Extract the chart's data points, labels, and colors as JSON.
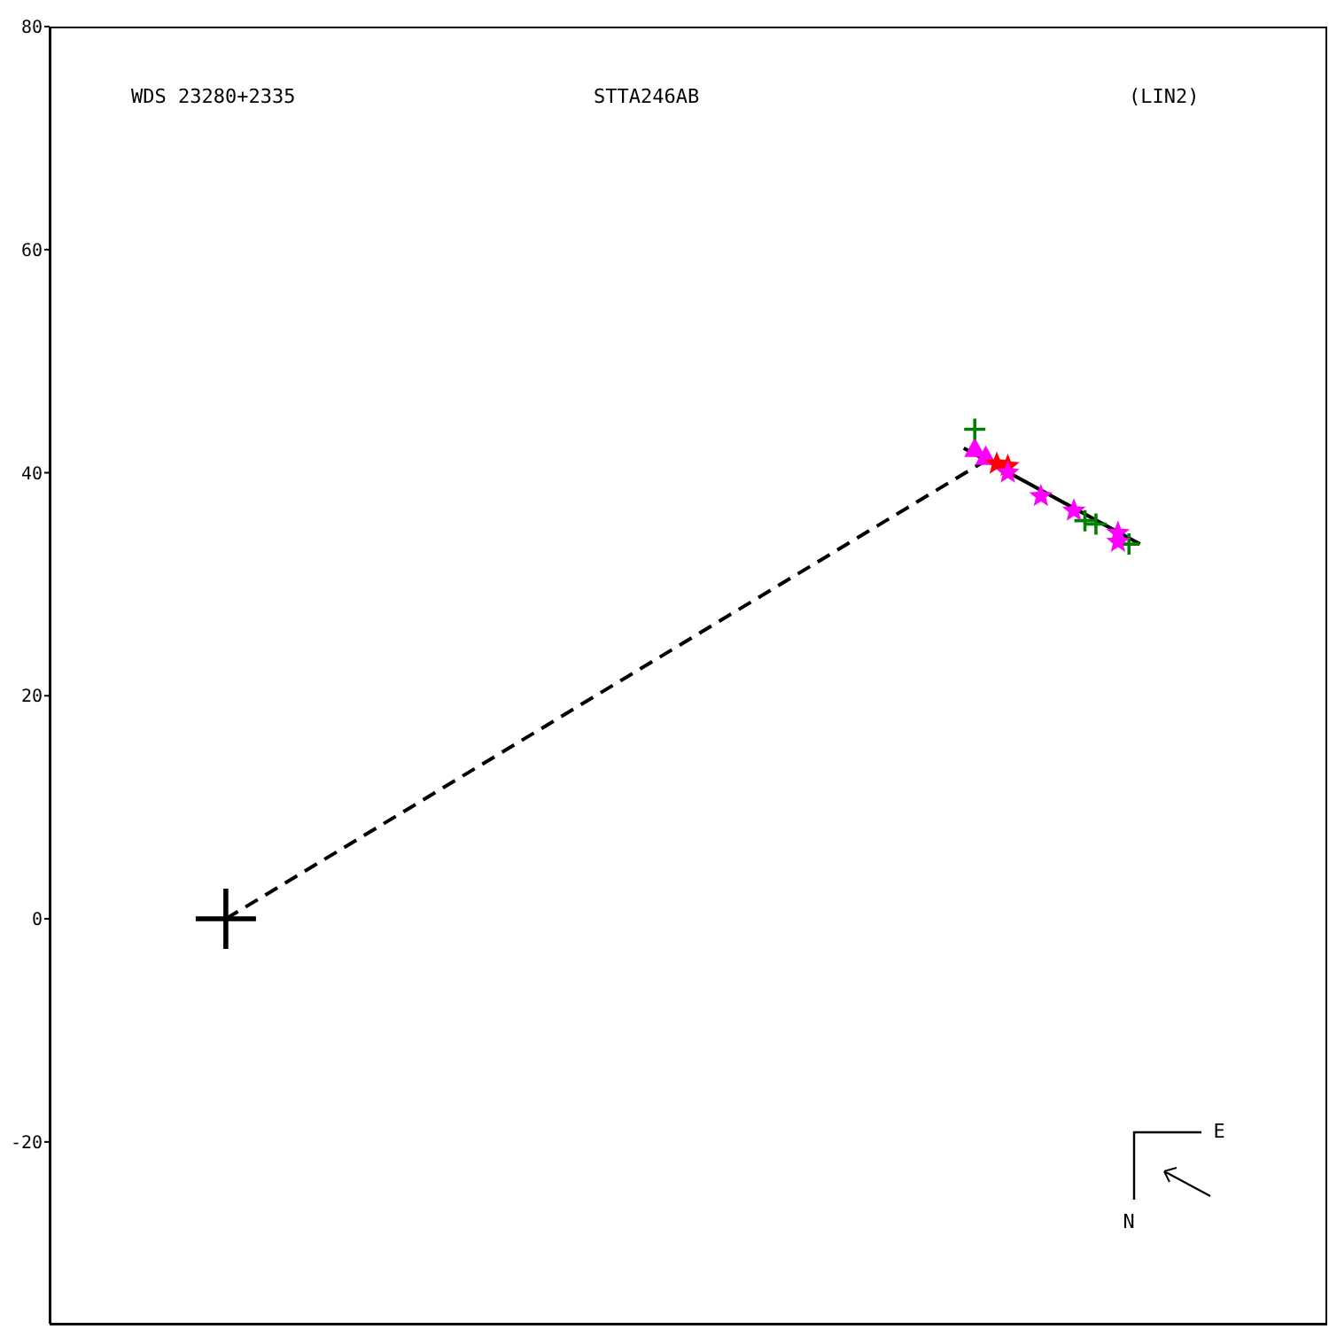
{
  "chart_data": {
    "type": "scatter",
    "title": "WDS 23280+2335",
    "subtitle": "STTA246AB",
    "annotations": [
      "(LIN2)",
      "N",
      "E"
    ],
    "categories": [
      null,
      null,
      null,
      null,
      null,
      null,
      null,
      null,
      null,
      null,
      null,
      null,
      null,
      null,
      null,
      null,
      null,
      null,
      null,
      null,
      null,
      null,
      null,
      null,
      null,
      null,
      null,
      null,
      null,
      null,
      null,
      null,
      null,
      null,
      null,
      null,
      null,
      null,
      null,
      null,
      null,
      null,
      null,
      null,
      null,
      null,
      null,
      null,
      null,
      null,
      null,
      null,
      null,
      null,
      null,
      null,
      null,
      null,
      null,
      null,
      null,
      null,
      null,
      null,
      null,
      null,
      null,
      null,
      null,
      null,
      null,
      null,
      null,
      null,
      null,
      null,
      null,
      null,
      null,
      null,
      null,
      null,
      null,
      null,
      null,
      null,
      null,
      null,
      null,
      null,
      null,
      null,
      null,
      null,
      null,
      null,
      null,
      null,
      null,
      null,
      null,
      null,
      null,
      null,
      null,
      null,
      null,
      null,
      null,
      null,
      null,
      null,
      null,
      null,
      null,
      null,
      null
    ],
    "tick_labels": "y",
    "ylim": [
      -36.3,
      80
    ],
    "yticks": [
      -20,
      0,
      20,
      40,
      60,
      80
    ],
    "grid": false,
    "legend": false,
    "series": [
      {
        "type": "line",
        "line_style": "dashed",
        "marker": "none",
        "color": "#000000",
        "values": [
          null,
          null,
          null,
          null,
          null,
          null,
          null,
          null,
          null,
          null,
          null,
          null,
          null,
          null,
          null,
          null,
          0,
          null,
          null,
          null,
          null,
          null,
          null,
          null,
          null,
          null,
          null,
          null,
          null,
          null,
          null,
          null,
          null,
          null,
          null,
          null,
          null,
          null,
          null,
          null,
          null,
          null,
          null,
          null,
          null,
          null,
          null,
          null,
          null,
          null,
          null,
          null,
          null,
          null,
          null,
          null,
          null,
          null,
          null,
          null,
          null,
          null,
          null,
          null,
          null,
          null,
          null,
          null,
          null,
          null,
          null,
          null,
          null,
          null,
          null,
          null,
          null,
          null,
          null,
          null,
          null,
          null,
          null,
          null,
          null,
          41.1,
          null,
          null,
          null,
          null,
          null,
          null,
          null,
          null,
          null,
          null,
          null,
          null,
          null,
          null,
          null,
          null,
          null,
          null,
          null,
          null,
          null,
          null,
          null,
          null,
          null,
          null,
          null,
          null,
          null,
          null,
          null
        ]
      },
      {
        "type": "line",
        "line_style": "solid",
        "marker": "none",
        "color": "#000000",
        "values": [
          null,
          null,
          null,
          null,
          null,
          null,
          null,
          null,
          null,
          null,
          null,
          null,
          null,
          null,
          null,
          null,
          null,
          null,
          null,
          null,
          null,
          null,
          null,
          null,
          null,
          null,
          null,
          null,
          null,
          null,
          null,
          null,
          null,
          null,
          null,
          null,
          null,
          null,
          null,
          null,
          null,
          null,
          null,
          null,
          null,
          null,
          null,
          null,
          null,
          null,
          null,
          null,
          null,
          null,
          null,
          null,
          null,
          null,
          null,
          null,
          null,
          null,
          null,
          null,
          null,
          null,
          null,
          null,
          null,
          null,
          null,
          null,
          null,
          null,
          null,
          null,
          null,
          null,
          null,
          null,
          null,
          null,
          null,
          42.2,
          null,
          null,
          null,
          null,
          null,
          null,
          null,
          null,
          null,
          null,
          null,
          null,
          null,
          null,
          null,
          33.6,
          null,
          null,
          null,
          null,
          null,
          null,
          null,
          null,
          null,
          null,
          null,
          null,
          null,
          null,
          null,
          null,
          null
        ]
      },
      {
        "marker": "cross",
        "color": "#000000",
        "values": [
          null,
          null,
          null,
          null,
          null,
          null,
          null,
          null,
          null,
          null,
          null,
          null,
          null,
          null,
          null,
          null,
          0,
          null,
          null,
          null,
          null,
          null,
          null,
          null,
          null,
          null,
          null,
          null,
          null,
          null,
          null,
          null,
          null,
          null,
          null,
          null,
          null,
          null,
          null,
          null,
          null,
          null,
          null,
          null,
          null,
          null,
          null,
          null,
          null,
          null,
          null,
          null,
          null,
          null,
          null,
          null,
          null,
          null,
          null,
          null,
          null,
          null,
          null,
          null,
          null,
          null,
          null,
          null,
          null,
          null,
          null,
          null,
          null,
          null,
          null,
          null,
          null,
          null,
          null,
          null,
          null,
          null,
          null,
          null,
          null,
          null,
          null,
          null,
          null,
          null,
          null,
          null,
          null,
          null,
          null,
          null,
          null,
          null,
          null,
          null,
          null,
          null,
          null,
          null,
          null,
          null,
          null,
          null,
          null,
          null,
          null,
          null,
          null,
          null,
          null,
          null,
          null
        ]
      },
      {
        "marker": "triangle",
        "color": "#ff00ff",
        "values": [
          null,
          null,
          null,
          null,
          null,
          null,
          null,
          null,
          null,
          null,
          null,
          null,
          null,
          null,
          null,
          null,
          null,
          null,
          null,
          null,
          null,
          null,
          null,
          null,
          null,
          null,
          null,
          null,
          null,
          null,
          null,
          null,
          null,
          null,
          null,
          null,
          null,
          null,
          null,
          null,
          null,
          null,
          null,
          null,
          null,
          null,
          null,
          null,
          null,
          null,
          null,
          null,
          null,
          null,
          null,
          null,
          null,
          null,
          null,
          null,
          null,
          null,
          null,
          null,
          null,
          null,
          null,
          null,
          null,
          null,
          null,
          null,
          null,
          null,
          null,
          null,
          null,
          null,
          null,
          null,
          null,
          null,
          null,
          null,
          42.2,
          41.5,
          null,
          null,
          null,
          null,
          null,
          null,
          null,
          null,
          null,
          null,
          null,
          null,
          null,
          null,
          null,
          null,
          null,
          null,
          null,
          null,
          null,
          null,
          null,
          null,
          null,
          null,
          null,
          null,
          null,
          null,
          null
        ]
      },
      {
        "marker": "cross",
        "color": "#008000",
        "values": [
          null,
          null,
          null,
          null,
          null,
          null,
          null,
          null,
          null,
          null,
          null,
          null,
          null,
          null,
          null,
          null,
          null,
          null,
          null,
          null,
          null,
          null,
          null,
          null,
          null,
          null,
          null,
          null,
          null,
          null,
          null,
          null,
          null,
          null,
          null,
          null,
          null,
          null,
          null,
          null,
          null,
          null,
          null,
          null,
          null,
          null,
          null,
          null,
          null,
          null,
          null,
          null,
          null,
          null,
          null,
          null,
          null,
          null,
          null,
          null,
          null,
          null,
          null,
          null,
          null,
          null,
          null,
          null,
          null,
          null,
          null,
          null,
          null,
          null,
          null,
          null,
          null,
          null,
          null,
          null,
          null,
          null,
          null,
          null,
          43.9,
          null,
          null,
          null,
          null,
          null,
          null,
          null,
          null,
          null,
          35.7,
          35.4,
          null,
          null,
          33.6,
          null,
          null,
          null,
          null,
          null,
          null,
          null,
          null,
          null,
          null,
          null,
          null,
          null,
          null,
          null,
          null,
          null,
          null
        ]
      },
      {
        "marker": "star",
        "color": "#ff0000",
        "values": [
          null,
          null,
          null,
          null,
          null,
          null,
          null,
          null,
          null,
          null,
          null,
          null,
          null,
          null,
          null,
          null,
          null,
          null,
          null,
          null,
          null,
          null,
          null,
          null,
          null,
          null,
          null,
          null,
          null,
          null,
          null,
          null,
          null,
          null,
          null,
          null,
          null,
          null,
          null,
          null,
          null,
          null,
          null,
          null,
          null,
          null,
          null,
          null,
          null,
          null,
          null,
          null,
          null,
          null,
          null,
          null,
          null,
          null,
          null,
          null,
          null,
          null,
          null,
          null,
          null,
          null,
          null,
          null,
          null,
          null,
          null,
          null,
          null,
          null,
          null,
          null,
          null,
          null,
          null,
          null,
          null,
          null,
          null,
          null,
          null,
          null,
          40.8,
          40.6,
          null,
          null,
          null,
          null,
          null,
          null,
          null,
          null,
          null,
          null,
          null,
          null,
          null,
          null,
          null,
          null,
          null,
          null,
          null,
          null,
          null,
          null,
          null,
          null,
          null,
          null,
          null,
          null,
          null
        ]
      },
      {
        "marker": "star",
        "color": "#ff00ff",
        "values": [
          null,
          null,
          null,
          null,
          null,
          null,
          null,
          null,
          null,
          null,
          null,
          null,
          null,
          null,
          null,
          null,
          null,
          null,
          null,
          null,
          null,
          null,
          null,
          null,
          null,
          null,
          null,
          null,
          null,
          null,
          null,
          null,
          null,
          null,
          null,
          null,
          null,
          null,
          null,
          null,
          null,
          null,
          null,
          null,
          null,
          null,
          null,
          null,
          null,
          null,
          null,
          null,
          null,
          null,
          null,
          null,
          null,
          null,
          null,
          null,
          null,
          null,
          null,
          null,
          null,
          null,
          null,
          null,
          null,
          null,
          null,
          null,
          null,
          null,
          null,
          null,
          null,
          null,
          null,
          null,
          null,
          null,
          null,
          null,
          null,
          null,
          null,
          40.0,
          null,
          null,
          37.9,
          null,
          null,
          36.6,
          null,
          null,
          null,
          34.6,
          null,
          null,
          null,
          null,
          null,
          null,
          null,
          null,
          null,
          null,
          null,
          null,
          null,
          null,
          null,
          null,
          null,
          null,
          null
        ]
      },
      {
        "marker": "star",
        "color": "#ff00ff",
        "values": [
          null,
          null,
          null,
          null,
          null,
          null,
          null,
          null,
          null,
          null,
          null,
          null,
          null,
          null,
          null,
          null,
          null,
          null,
          null,
          null,
          null,
          null,
          null,
          null,
          null,
          null,
          null,
          null,
          null,
          null,
          null,
          null,
          null,
          null,
          null,
          null,
          null,
          null,
          null,
          null,
          null,
          null,
          null,
          null,
          null,
          null,
          null,
          null,
          null,
          null,
          null,
          null,
          null,
          null,
          null,
          null,
          null,
          null,
          null,
          null,
          null,
          null,
          null,
          null,
          null,
          null,
          null,
          null,
          null,
          null,
          null,
          null,
          null,
          null,
          null,
          null,
          null,
          null,
          null,
          null,
          null,
          null,
          null,
          null,
          null,
          null,
          null,
          null,
          null,
          null,
          null,
          null,
          null,
          null,
          null,
          null,
          null,
          33.8,
          null,
          null,
          null,
          null,
          null,
          null,
          null,
          null,
          null,
          null,
          null,
          null,
          null,
          null,
          null,
          null,
          null,
          null,
          null
        ]
      }
    ]
  }
}
